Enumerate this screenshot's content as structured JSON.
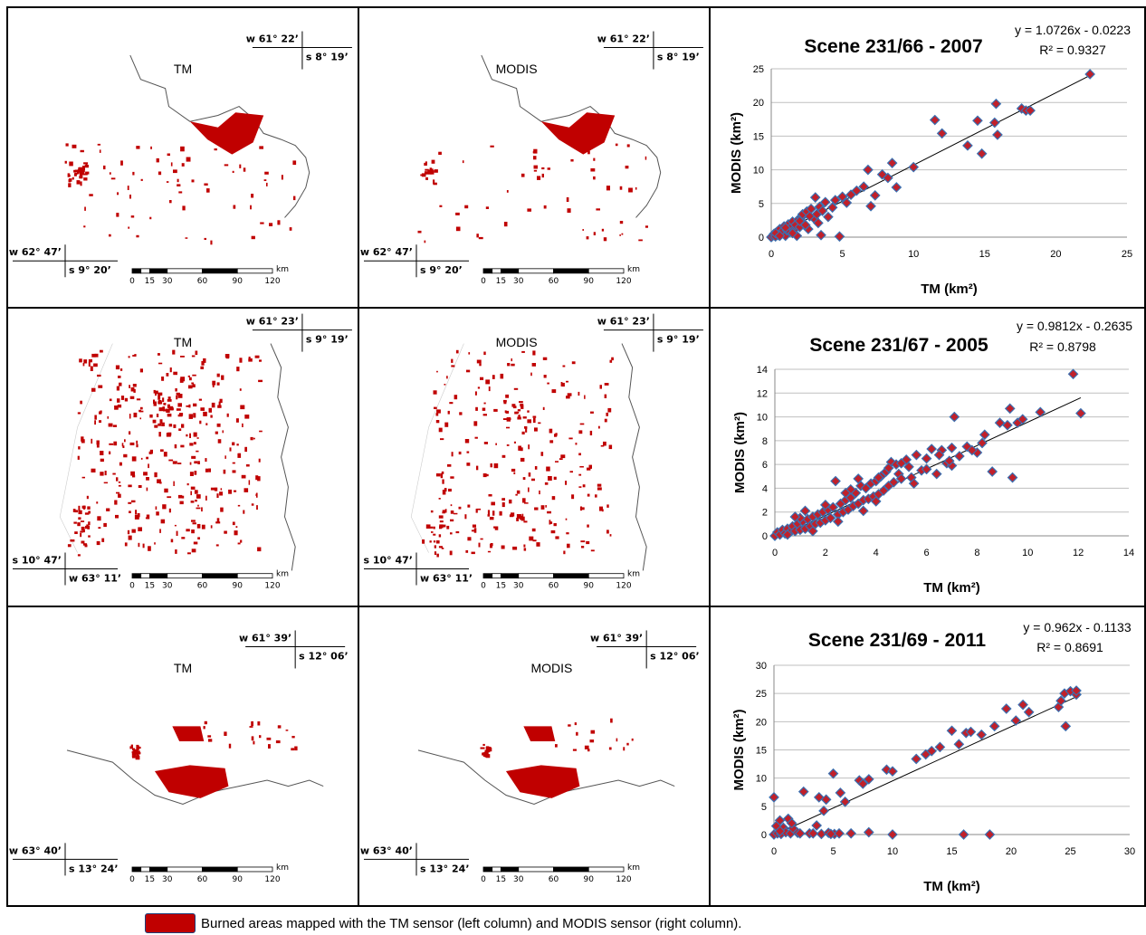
{
  "colors": {
    "burn": "#c00000",
    "marker_fill": "#c0202a",
    "marker_edge": "#3a6fb0",
    "trend": "#000000",
    "grid": "#bfbfbf",
    "legend_border": "#1f3f7a"
  },
  "legend": {
    "text": "Burned areas mapped with the TM sensor (left column) and MODIS sensor (right column)."
  },
  "scale_bar": {
    "ticks": [
      "0",
      "15",
      "30",
      "60",
      "90",
      "120"
    ],
    "unit": "km"
  },
  "rows": [
    {
      "tm_label": "TM",
      "modis_label": "MODIS",
      "tm_coords": {
        "ne_lon": "w 61° 22’",
        "ne_lat": "s 8° 19’",
        "sw_lon": "w 62° 47’",
        "sw_lat": "s 9° 20’"
      },
      "modis_coords": {
        "ne_lon": "w 61° 22’",
        "ne_lat": "s 8° 19’",
        "sw_lon": "w 62° 47’",
        "sw_lat": "s 9° 20’"
      }
    },
    {
      "tm_label": "TM",
      "modis_label": "MODIS",
      "tm_coords": {
        "ne_lon": "w 61° 23’",
        "ne_lat": "s 9° 19’",
        "sw_lon": "s 10° 47’",
        "sw_lat": "w 63° 11’"
      },
      "modis_coords": {
        "ne_lon": "w 61° 23’",
        "ne_lat": "s 9° 19’",
        "sw_lon": "s 10° 47’",
        "sw_lat": "w 63° 11’"
      }
    },
    {
      "tm_label": "TM",
      "modis_label": "MODIS",
      "tm_coords": {
        "ne_lon": "w 61° 39’",
        "ne_lat": "s 12° 06’",
        "sw_lon": "w 63° 40’",
        "sw_lat": "s 13° 24’"
      },
      "modis_coords": {
        "ne_lon": "w 61° 39’",
        "ne_lat": "s 12° 06’",
        "sw_lon": "w 63° 40’",
        "sw_lat": "s 13° 24’"
      }
    }
  ],
  "chart_data": [
    {
      "type": "scatter",
      "title": "Scene 231/66 - 2007",
      "equation": "y = 1.0726x - 0.0223",
      "r2": "R² = 0.9327",
      "xlabel": "TM (km²)",
      "ylabel": "MODIS (km²)",
      "xlim": [
        0,
        25
      ],
      "ylim": [
        0,
        25
      ],
      "xticks": [
        0,
        5,
        10,
        15,
        20,
        25
      ],
      "yticks": [
        0,
        5,
        10,
        15,
        20,
        25
      ],
      "grid": true,
      "trend": {
        "slope": 1.0726,
        "intercept": -0.0223,
        "x_range": [
          0,
          22.5
        ]
      },
      "points": [
        [
          0,
          0
        ],
        [
          0.1,
          0.2
        ],
        [
          0.2,
          0.5
        ],
        [
          0.3,
          0.1
        ],
        [
          0.4,
          0.8
        ],
        [
          0.5,
          0.3
        ],
        [
          0.6,
          1.2
        ],
        [
          0.7,
          0.5
        ],
        [
          0.8,
          0.9
        ],
        [
          0.9,
          1.6
        ],
        [
          1,
          0.2
        ],
        [
          1.1,
          1
        ],
        [
          1.2,
          1.9
        ],
        [
          1.3,
          0.8
        ],
        [
          1.4,
          1.5
        ],
        [
          1.5,
          2.3
        ],
        [
          1.6,
          1.1
        ],
        [
          1.7,
          1.8
        ],
        [
          1.8,
          0.2
        ],
        [
          1.9,
          2.6
        ],
        [
          2,
          1.5
        ],
        [
          2.1,
          2.9
        ],
        [
          2.2,
          3.4
        ],
        [
          2.3,
          2
        ],
        [
          2.5,
          3.8
        ],
        [
          2.6,
          1.2
        ],
        [
          2.8,
          4.2
        ],
        [
          3,
          2.8
        ],
        [
          3.1,
          5.9
        ],
        [
          3.2,
          3.4
        ],
        [
          3.4,
          4.5
        ],
        [
          3.5,
          0.3
        ],
        [
          3.6,
          3.9
        ],
        [
          3.8,
          5.2
        ],
        [
          4,
          3
        ],
        [
          4.3,
          4.4
        ],
        [
          4.5,
          5.5
        ],
        [
          4.8,
          0.1
        ],
        [
          5,
          6
        ],
        [
          5.3,
          5.1
        ],
        [
          5.6,
          6.3
        ],
        [
          6,
          6.9
        ],
        [
          6.5,
          7.5
        ],
        [
          6.8,
          10
        ],
        [
          7,
          4.6
        ],
        [
          7.3,
          6.2
        ],
        [
          7.8,
          9.3
        ],
        [
          8.2,
          8.8
        ],
        [
          8.5,
          11
        ],
        [
          8.8,
          7.4
        ],
        [
          10,
          10.4
        ],
        [
          11.5,
          17.4
        ],
        [
          12,
          15.4
        ],
        [
          13.8,
          13.6
        ],
        [
          14.5,
          17.3
        ],
        [
          14.8,
          12.4
        ],
        [
          15.7,
          17
        ],
        [
          15.8,
          19.8
        ],
        [
          15.9,
          15.2
        ],
        [
          17.6,
          19.1
        ],
        [
          17.9,
          18.8
        ],
        [
          18.2,
          18.8
        ],
        [
          22.4,
          24.2
        ],
        [
          0.3,
          0.6
        ],
        [
          0.6,
          0.2
        ],
        [
          1,
          1.4
        ],
        [
          1.5,
          0.6
        ],
        [
          2,
          2.4
        ],
        [
          2.4,
          1.8
        ],
        [
          2.7,
          3.1
        ],
        [
          3.3,
          2.1
        ]
      ]
    },
    {
      "type": "scatter",
      "title": "Scene 231/67 - 2005",
      "equation": "y = 0.9812x - 0.2635",
      "r2": "R² = 0.8798",
      "xlabel": "TM (km²)",
      "ylabel": "MODIS (km²)",
      "xlim": [
        0,
        14
      ],
      "ylim": [
        0,
        14
      ],
      "xticks": [
        0,
        2,
        4,
        6,
        8,
        10,
        12,
        14
      ],
      "yticks": [
        0,
        2,
        4,
        6,
        8,
        10,
        12,
        14
      ],
      "grid": true,
      "trend": {
        "slope": 0.9812,
        "intercept": -0.2635,
        "x_range": [
          0,
          12.1
        ]
      },
      "points": [
        [
          0,
          0
        ],
        [
          0.1,
          0.3
        ],
        [
          0.2,
          0.1
        ],
        [
          0.3,
          0.5
        ],
        [
          0.4,
          0.2
        ],
        [
          0.5,
          0.6
        ],
        [
          0.6,
          0.3
        ],
        [
          0.7,
          0.8
        ],
        [
          0.8,
          0.4
        ],
        [
          0.9,
          1
        ],
        [
          1,
          0.5
        ],
        [
          1.1,
          1.2
        ],
        [
          1.2,
          0.6
        ],
        [
          1.3,
          1.4
        ],
        [
          1.4,
          0.8
        ],
        [
          1.5,
          1.6
        ],
        [
          1.6,
          1
        ],
        [
          1.7,
          1.8
        ],
        [
          1.8,
          1.1
        ],
        [
          1.9,
          2
        ],
        [
          2,
          1.3
        ],
        [
          2.1,
          2.2
        ],
        [
          2.2,
          1.5
        ],
        [
          2.3,
          2.4
        ],
        [
          2.4,
          4.6
        ],
        [
          2.5,
          1.8
        ],
        [
          2.6,
          2.7
        ],
        [
          2.7,
          2
        ],
        [
          2.8,
          3
        ],
        [
          2.9,
          2.2
        ],
        [
          3,
          3.2
        ],
        [
          3.1,
          2.5
        ],
        [
          3.2,
          3.6
        ],
        [
          3.3,
          2.7
        ],
        [
          3.4,
          4.2
        ],
        [
          3.5,
          3
        ],
        [
          3.6,
          4
        ],
        [
          3.7,
          3.1
        ],
        [
          3.8,
          4.4
        ],
        [
          3.9,
          3.3
        ],
        [
          4,
          4.6
        ],
        [
          4.1,
          3.5
        ],
        [
          4.2,
          5
        ],
        [
          4.3,
          3.8
        ],
        [
          4.4,
          5.4
        ],
        [
          4.5,
          4.2
        ],
        [
          4.6,
          6.2
        ],
        [
          4.7,
          4.5
        ],
        [
          4.8,
          6
        ],
        [
          4.9,
          5.2
        ],
        [
          5,
          4.8
        ],
        [
          5.2,
          6.4
        ],
        [
          5.4,
          4.9
        ],
        [
          5.6,
          6.8
        ],
        [
          5.8,
          5.5
        ],
        [
          6,
          5.6
        ],
        [
          6.2,
          7.3
        ],
        [
          6.4,
          5.2
        ],
        [
          6.6,
          7.2
        ],
        [
          6.8,
          6.1
        ],
        [
          7,
          7.4
        ],
        [
          7.1,
          10
        ],
        [
          7.3,
          6.7
        ],
        [
          7.6,
          7.5
        ],
        [
          8,
          7
        ],
        [
          8.2,
          7.8
        ],
        [
          8.3,
          8.5
        ],
        [
          8.6,
          5.4
        ],
        [
          8.9,
          9.5
        ],
        [
          9.2,
          9.3
        ],
        [
          9.3,
          10.7
        ],
        [
          9.4,
          4.9
        ],
        [
          9.6,
          9.5
        ],
        [
          9.8,
          9.8
        ],
        [
          10.5,
          10.4
        ],
        [
          11.8,
          13.6
        ],
        [
          12.1,
          10.3
        ],
        [
          0.5,
          0.1
        ],
        [
          1,
          1.5
        ],
        [
          1.5,
          0.4
        ],
        [
          2,
          2.6
        ],
        [
          2.5,
          1.2
        ],
        [
          3,
          3.9
        ],
        [
          3.5,
          2.1
        ],
        [
          4,
          2.9
        ],
        [
          4.5,
          5.7
        ],
        [
          5,
          6.1
        ],
        [
          5.5,
          4.4
        ],
        [
          6,
          6.5
        ],
        [
          6.5,
          6.8
        ],
        [
          7,
          5.9
        ],
        [
          3.3,
          4.8
        ],
        [
          2.8,
          3.6
        ],
        [
          1.2,
          2.1
        ],
        [
          0.8,
          1.6
        ],
        [
          4.1,
          4.9
        ],
        [
          5.3,
          5.8
        ],
        [
          6.9,
          6.3
        ],
        [
          7.8,
          7.2
        ]
      ]
    },
    {
      "type": "scatter",
      "title": "Scene 231/69 - 2011",
      "equation": "y = 0.962x - 0.1133",
      "r2": "R² = 0.8691",
      "xlabel": "TM (km²)",
      "ylabel": "MODIS (km²)",
      "xlim": [
        0,
        30
      ],
      "ylim": [
        0,
        30
      ],
      "xticks": [
        0,
        5,
        10,
        15,
        20,
        25,
        30
      ],
      "yticks": [
        0,
        5,
        10,
        15,
        20,
        25,
        30
      ],
      "grid": true,
      "trend": {
        "slope": 0.962,
        "intercept": -0.1133,
        "x_range": [
          0,
          25.5
        ]
      },
      "points": [
        [
          0,
          6.6
        ],
        [
          0,
          0
        ],
        [
          0.2,
          1.5
        ],
        [
          0.3,
          0.2
        ],
        [
          0.5,
          2.5
        ],
        [
          0.6,
          0.1
        ],
        [
          0.8,
          1.2
        ],
        [
          1,
          0.4
        ],
        [
          1.2,
          2.8
        ],
        [
          1.4,
          0.2
        ],
        [
          1.6,
          1.1
        ],
        [
          2,
          0.3
        ],
        [
          2.5,
          7.6
        ],
        [
          3,
          0.2
        ],
        [
          3.6,
          1.6
        ],
        [
          3.8,
          6.6
        ],
        [
          4,
          0.1
        ],
        [
          4.2,
          4.2
        ],
        [
          4.4,
          6.2
        ],
        [
          4.6,
          0.3
        ],
        [
          5,
          10.8
        ],
        [
          5.1,
          0.1
        ],
        [
          5.6,
          7.4
        ],
        [
          6,
          5.8
        ],
        [
          6.5,
          0.2
        ],
        [
          7.2,
          9.6
        ],
        [
          7.5,
          9
        ],
        [
          8,
          0.4
        ],
        [
          8,
          9.8
        ],
        [
          9.5,
          11.5
        ],
        [
          10,
          11.2
        ],
        [
          10,
          0
        ],
        [
          12,
          13.4
        ],
        [
          12.8,
          14.2
        ],
        [
          13.3,
          14.8
        ],
        [
          14,
          15.5
        ],
        [
          15,
          18.4
        ],
        [
          15.6,
          16
        ],
        [
          16,
          0
        ],
        [
          16.2,
          18
        ],
        [
          16.6,
          18.2
        ],
        [
          17.5,
          17.7
        ],
        [
          18.2,
          0
        ],
        [
          18.6,
          19.2
        ],
        [
          19.6,
          22.3
        ],
        [
          20.4,
          20.2
        ],
        [
          21,
          23
        ],
        [
          21.5,
          21.7
        ],
        [
          24,
          22.6
        ],
        [
          24.2,
          23.7
        ],
        [
          24.5,
          25
        ],
        [
          24.6,
          19.2
        ],
        [
          25,
          25.4
        ],
        [
          25.5,
          24.8
        ],
        [
          25.5,
          25.5
        ],
        [
          1.5,
          2
        ],
        [
          2.2,
          0.2
        ],
        [
          0.5,
          0.6
        ],
        [
          3.3,
          0.2
        ],
        [
          4.8,
          0.1
        ],
        [
          5.5,
          0.2
        ]
      ]
    }
  ]
}
